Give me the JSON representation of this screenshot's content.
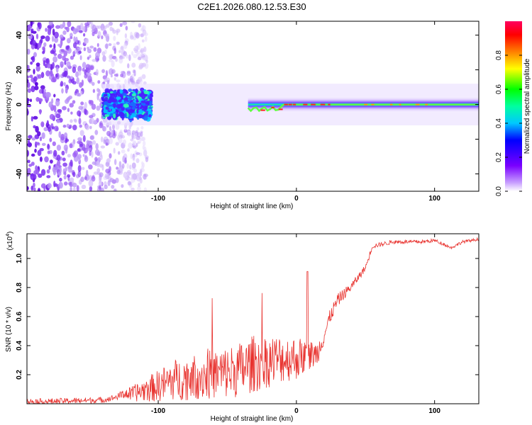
{
  "title": "C2E1.2026.080.12.53.E30",
  "colors": {
    "line": "#e8322e",
    "axis": "#000000",
    "background": "#ffffff"
  },
  "chart_data": [
    {
      "type": "heatmap",
      "xlabel": "Height of straight line (km)",
      "ylabel": "Frequency (Hz)",
      "xlim": [
        -195,
        132
      ],
      "ylim": [
        -50,
        48
      ],
      "xticks": [
        -100,
        0,
        100
      ],
      "xtick_labels": [
        "-100",
        "0",
        "100"
      ],
      "yticks": [
        -40,
        -20,
        0,
        20,
        40
      ],
      "ytick_labels": [
        "-40",
        "-20",
        "0",
        "20",
        "40"
      ],
      "colorbar": {
        "label": "Normalized spectral amplitude",
        "range": [
          0.0,
          1.0
        ],
        "ticks": [
          0.0,
          0.2,
          0.4,
          0.6,
          0.8
        ],
        "tick_labels": [
          "0.0",
          "0.2",
          "0.4",
          "0.6",
          "0.8"
        ]
      },
      "features": {
        "noise_region_x": [
          -195,
          -108
        ],
        "band_start_x": -140,
        "band_center_freq_hz": 0,
        "bright_segment_x": [
          -10,
          20
        ]
      }
    },
    {
      "type": "line",
      "xlabel": "Height of straight line (km)",
      "ylabel": "SNR (10 * v/v)",
      "scale_label": "(x10",
      "scale_exponent": "4",
      "xlim": [
        -195,
        132
      ],
      "ylim": [
        0,
        1.17
      ],
      "xticks": [
        -100,
        0,
        100
      ],
      "xtick_labels": [
        "-100",
        "0",
        "100"
      ],
      "yticks": [
        0.2,
        0.4,
        0.6,
        0.8,
        1.0
      ],
      "ytick_labels": [
        "0.2",
        "0.4",
        "0.6",
        "0.8",
        "1.0"
      ],
      "series": [
        {
          "name": "SNR",
          "x": [
            -195,
            -180,
            -160,
            -140,
            -130,
            -125,
            -120,
            -110,
            -100,
            -90,
            -80,
            -70,
            -60,
            -50,
            -40,
            -30,
            -20,
            -10,
            0,
            10,
            15,
            20,
            25,
            30,
            40,
            50,
            55,
            70,
            90,
            100,
            108,
            112,
            120,
            132
          ],
          "values": [
            0.01,
            0.01,
            0.015,
            0.02,
            0.04,
            0.06,
            0.05,
            0.07,
            0.09,
            0.12,
            0.13,
            0.14,
            0.15,
            0.16,
            0.18,
            0.22,
            0.24,
            0.26,
            0.27,
            0.3,
            0.32,
            0.45,
            0.6,
            0.7,
            0.8,
            0.93,
            1.08,
            1.11,
            1.11,
            1.12,
            1.09,
            1.07,
            1.11,
            1.13
          ]
        }
      ],
      "noise_amplitude": [
        {
          "x": -130,
          "amp": 0.04
        },
        {
          "x": -90,
          "amp": 0.28
        },
        {
          "x": -60,
          "amp": 0.35
        },
        {
          "x": -30,
          "amp": 0.4
        },
        {
          "x": 0,
          "amp": 0.3
        },
        {
          "x": 20,
          "amp": 0.12
        },
        {
          "x": 40,
          "amp": 0.06
        },
        {
          "x": 60,
          "amp": 0.03
        },
        {
          "x": 132,
          "amp": 0.02
        }
      ]
    }
  ]
}
